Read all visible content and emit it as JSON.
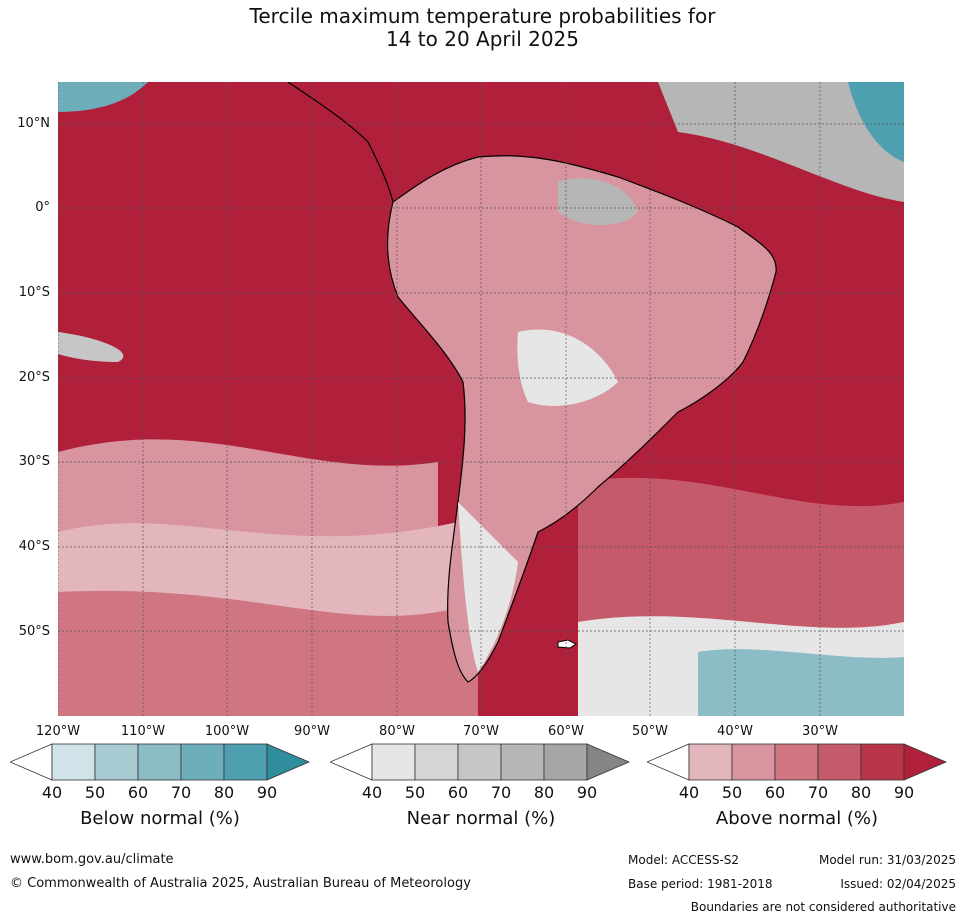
{
  "title": {
    "line1": "Tercile maximum temperature probabilities for",
    "line2": "14 to 20 April 2025"
  },
  "map": {
    "lat_labels": [
      "10°N",
      "0°",
      "10°S",
      "20°S",
      "30°S",
      "40°S",
      "50°S"
    ],
    "lon_labels": [
      "120°W",
      "110°W",
      "100°W",
      "90°W",
      "80°W",
      "70°W",
      "60°W",
      "50°W",
      "40°W",
      "30°W"
    ],
    "region": "South America and surrounding oceans"
  },
  "legend": {
    "ticks": [
      "40",
      "50",
      "60",
      "70",
      "80",
      "90"
    ],
    "below": {
      "title": "Below normal (%)",
      "colors": [
        "#ffffff",
        "#cfe3e8",
        "#a8cbd2",
        "#8cbcc6",
        "#6eaebb",
        "#4ea0b0",
        "#2f8d9e"
      ]
    },
    "near": {
      "title": "Near normal (%)",
      "colors": [
        "#ffffff",
        "#e6e6e6",
        "#d5d5d5",
        "#c6c6c6",
        "#b6b6b6",
        "#a6a6a6",
        "#858585"
      ]
    },
    "above": {
      "title": "Above normal (%)",
      "colors": [
        "#ffffff",
        "#e3b6bd",
        "#d8959f",
        "#cf7682",
        "#c55b6a",
        "#b93549",
        "#b0203b"
      ]
    }
  },
  "footer": {
    "website": "www.bom.gov.au/climate",
    "copyright": "© Commonwealth of Australia 2025, Australian Bureau of Meteorology",
    "model": "Model: ACCESS-S2",
    "model_run": "Model run: 31/03/2025",
    "base_period": "Base period: 1981-2018",
    "issued": "Issued: 02/04/2025",
    "disclaimer": "Boundaries are not considered authoritative"
  }
}
